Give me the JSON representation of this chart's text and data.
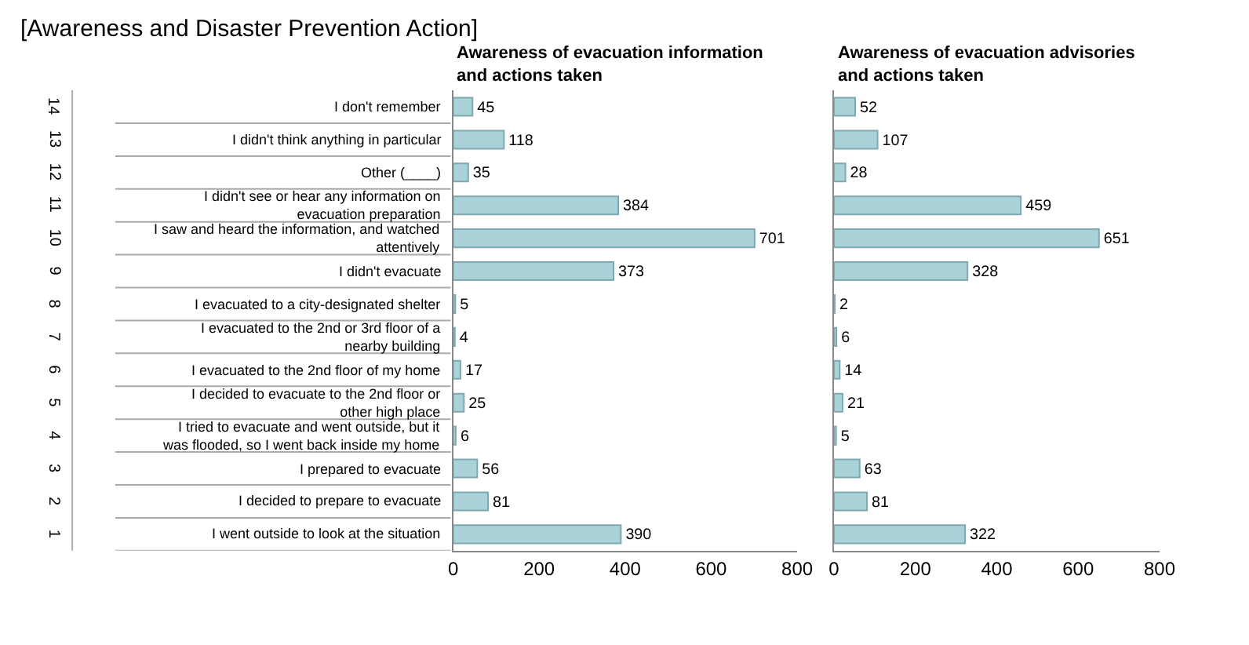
{
  "chart_data": [
    {
      "type": "bar",
      "orientation": "horizontal",
      "title": "[Awareness and Disaster Prevention Action]",
      "subtitle": "Awareness of evacuation information and actions taken",
      "categories": [
        "I don't remember",
        "I didn't think anything in particular",
        "Other (____)",
        "I didn't see or hear any information on evacuation preparation",
        "I saw and heard the information, and watched attentively",
        "I didn't evacuate",
        "I evacuated to a city-designated shelter",
        "I evacuated to the 2nd or 3rd floor of a nearby building",
        "I evacuated to the 2nd floor of my home",
        "I decided to evacuate to the 2nd floor or other high place",
        "I tried to evacuate and went outside, but it was flooded, so I went back inside my home",
        "I prepared to evacuate",
        "I decided to prepare to evacuate",
        "I went outside to look at the situation"
      ],
      "annotations": [
        "14",
        "13",
        "12",
        "11",
        "10",
        "9",
        "8",
        "7",
        "6",
        "5",
        "4",
        "3",
        "2",
        "1"
      ],
      "values": [
        45,
        118,
        35,
        384,
        701,
        373,
        5,
        4,
        17,
        25,
        6,
        56,
        81,
        390
      ],
      "color": "#a9d3d9",
      "xlim": [
        0,
        800
      ],
      "xticks": [
        0,
        200,
        400,
        600,
        800
      ],
      "data_labels": true
    },
    {
      "type": "bar",
      "orientation": "horizontal",
      "subtitle": "Awareness of evacuation advisories and actions taken",
      "categories": [
        null,
        null,
        null,
        null,
        null,
        null,
        null,
        null,
        null,
        null,
        null,
        null,
        null,
        null
      ],
      "values": [
        52,
        107,
        28,
        459,
        651,
        328,
        2,
        6,
        14,
        21,
        5,
        63,
        81,
        322
      ],
      "color": "#a9d3d9",
      "xlim": [
        0,
        800
      ],
      "xticks": [
        0,
        200,
        400,
        600,
        800
      ],
      "data_labels": true,
      "tick_labels": "x"
    }
  ]
}
